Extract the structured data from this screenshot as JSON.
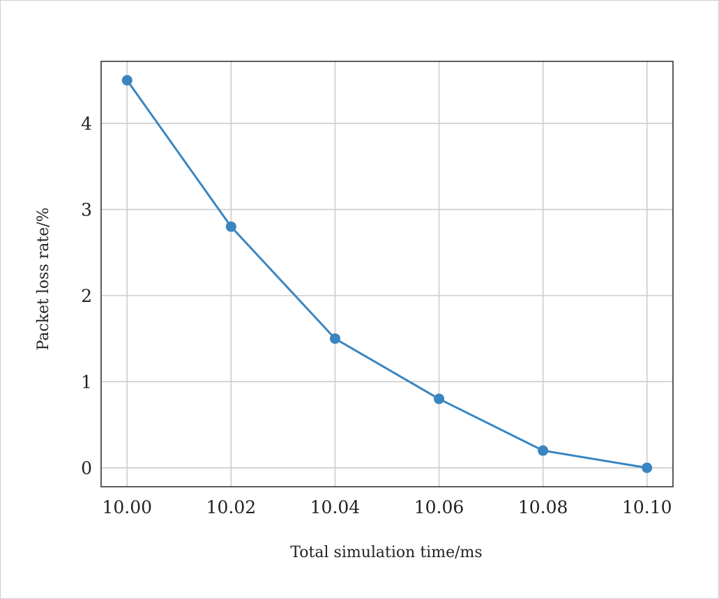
{
  "chart_data": {
    "type": "line",
    "title": "",
    "xlabel": "Total simulation time/ms",
    "ylabel": "Packet loss rate/%",
    "x": [
      10.0,
      10.02,
      10.04,
      10.06,
      10.08,
      10.1
    ],
    "xticks": [
      10.0,
      10.02,
      10.04,
      10.06,
      10.08,
      10.1
    ],
    "xtick_labels": [
      "10.00",
      "10.02",
      "10.04",
      "10.06",
      "10.08",
      "10.10"
    ],
    "yticks": [
      0,
      1,
      2,
      3,
      4
    ],
    "ytick_labels": [
      "0",
      "1",
      "2",
      "3",
      "4"
    ],
    "xlim": [
      9.995,
      10.105
    ],
    "ylim": [
      -0.22,
      4.72
    ],
    "grid": true,
    "series": [
      {
        "values": [
          4.5,
          2.8,
          1.5,
          0.8,
          0.2,
          0.0
        ],
        "color": "#3a85bf"
      }
    ]
  }
}
